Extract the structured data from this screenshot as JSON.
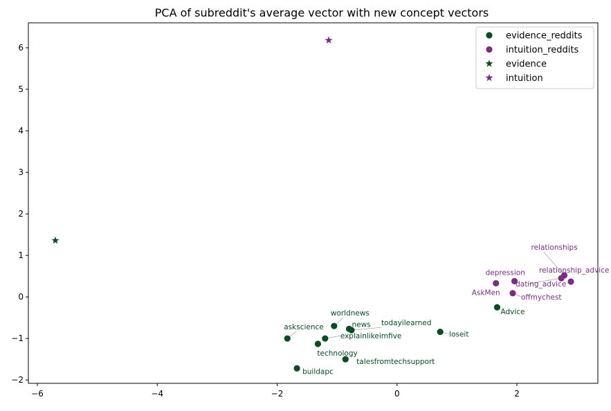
{
  "chart_data": {
    "type": "scatter",
    "title": "PCA of subreddit's average vector with new concept vectors",
    "xlabel": "",
    "ylabel": "",
    "xlim": [
      -6.15,
      3.35
    ],
    "ylim": [
      -2.08,
      6.6
    ],
    "xticks": [
      -6,
      -4,
      -2,
      0,
      2
    ],
    "yticks": [
      -2,
      -1,
      0,
      1,
      2,
      3,
      4,
      5,
      6
    ],
    "xtick_labels": [
      "−6",
      "−4",
      "−2",
      "0",
      "2"
    ],
    "ytick_labels": [
      "−2",
      "−1",
      "0",
      "1",
      "2",
      "3",
      "4",
      "5",
      "6"
    ],
    "grid": false,
    "legend_position": "top-right",
    "colors": {
      "evidence": "#0b4a22",
      "intuition": "#7b2d84"
    },
    "legend": [
      {
        "label": "evidence_reddits",
        "marker": "circle",
        "color_key": "evidence"
      },
      {
        "label": "intuition_reddits",
        "marker": "circle",
        "color_key": "intuition"
      },
      {
        "label": "evidence",
        "marker": "star",
        "color_key": "evidence"
      },
      {
        "label": "intuition",
        "marker": "star",
        "color_key": "intuition"
      }
    ],
    "series": [
      {
        "name": "evidence_reddits",
        "marker": "circle",
        "color_key": "evidence",
        "points": [
          {
            "label": "worldnews",
            "x": -1.05,
            "y": -0.7
          },
          {
            "label": "news",
            "x": -0.8,
            "y": -0.77
          },
          {
            "label": "todayilearned",
            "x": -0.76,
            "y": -0.8
          },
          {
            "label": "askscience",
            "x": -1.83,
            "y": -1.0
          },
          {
            "label": "explainlikeimfive",
            "x": -1.2,
            "y": -1.0
          },
          {
            "label": "technology",
            "x": -1.32,
            "y": -1.13
          },
          {
            "label": "talesfromtechsupport",
            "x": -0.86,
            "y": -1.5
          },
          {
            "label": "buildapc",
            "x": -1.67,
            "y": -1.72
          },
          {
            "label": "loseit",
            "x": 0.72,
            "y": -0.84
          },
          {
            "label": "Advice",
            "x": 1.67,
            "y": -0.25
          }
        ]
      },
      {
        "name": "intuition_reddits",
        "marker": "circle",
        "color_key": "intuition",
        "points": [
          {
            "label": "AskMen",
            "x": 1.65,
            "y": 0.33
          },
          {
            "label": "depression",
            "x": 1.96,
            "y": 0.38
          },
          {
            "label": "offmychest",
            "x": 1.93,
            "y": 0.09
          },
          {
            "label": "dating_advice",
            "x": 2.74,
            "y": 0.45
          },
          {
            "label": "relationships",
            "x": 2.79,
            "y": 0.52
          },
          {
            "label": "relationship_advice",
            "x": 2.9,
            "y": 0.37
          }
        ]
      },
      {
        "name": "evidence",
        "marker": "star",
        "color_key": "evidence",
        "points": [
          {
            "x": -5.7,
            "y": 1.36
          }
        ]
      },
      {
        "name": "intuition",
        "marker": "star",
        "color_key": "intuition",
        "points": [
          {
            "x": -1.14,
            "y": 6.18
          }
        ]
      }
    ]
  }
}
